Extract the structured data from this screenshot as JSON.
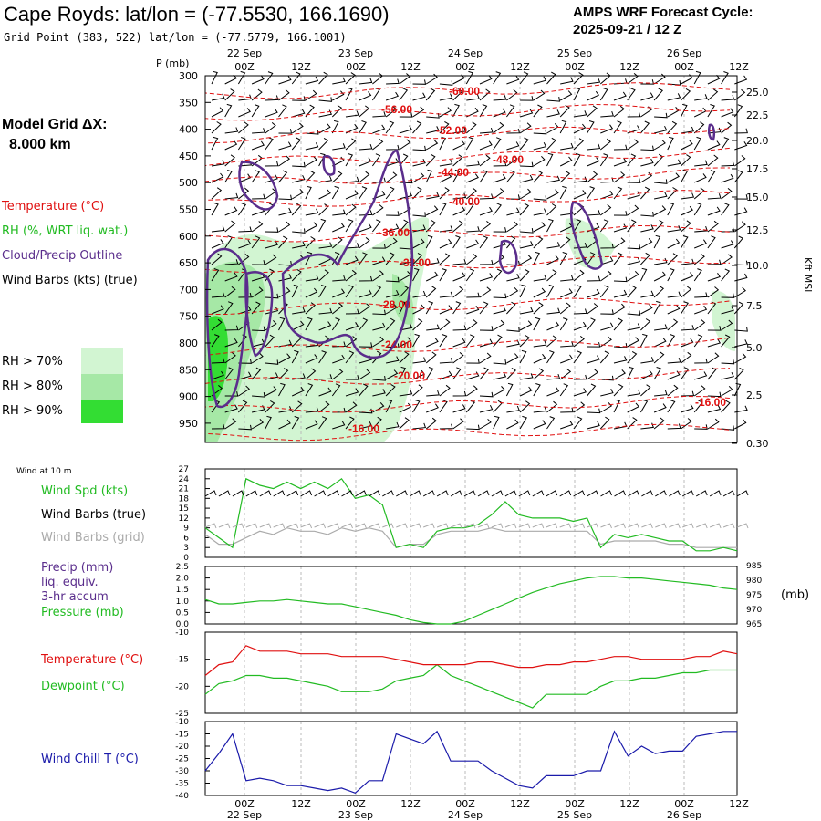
{
  "header": {
    "title": "Cape Royds:  lat/lon = (-77.5530, 166.1690)",
    "grid_point": "Grid Point (383, 522) lat/lon = (-77.5779, 166.1001)",
    "cycle_line1": "AMPS WRF Forecast Cycle:",
    "cycle_line2": "2025-09-21 / 12  Z"
  },
  "left_panel": {
    "model_grid_line1": "Model Grid ΔX:",
    "model_grid_line2": "8.000 km",
    "legend_temperature": "Temperature (°C)",
    "legend_rh": "RH (%, WRT liq. wat.)",
    "legend_cloud": "Cloud/Precip Outline",
    "legend_wind": "Wind Barbs (kts) (true)",
    "rh70": "RH > 70%",
    "rh80": "RH > 80%",
    "rh90": "RH > 90%",
    "wind_at_10m": "Wind at 10 m",
    "wind_spd": "Wind Spd (kts)",
    "wind_barbs_true": "Wind Barbs (true)",
    "wind_barbs_grid": "Wind Barbs (grid)",
    "precip1": "Precip (mm)",
    "precip2": "liq. equiv.",
    "precip3": "3-hr accum",
    "pressure": "Pressure (mb)",
    "temperature": "Temperature (°C)",
    "dewpoint": "Dewpoint (°C)",
    "windchill": "Wind Chill T (°C)"
  },
  "colors": {
    "temperature": "#e01010",
    "rh_green": "#22bb22",
    "cloud": "#5a2d8c",
    "windchill": "#1a1aaa",
    "grid_barb": "#aaaaaa",
    "rh70": "#d2f5d2",
    "rh80": "#a6e8a6",
    "rh90": "#33dd33"
  },
  "time_axis": {
    "hour_labels": [
      "00Z",
      "12Z",
      "00Z",
      "12Z",
      "00Z",
      "12Z",
      "00Z",
      "12Z",
      "00Z",
      "12Z"
    ],
    "date_labels": [
      "22 Sep",
      "23 Sep",
      "24 Sep",
      "25 Sep",
      "26 Sep"
    ],
    "top_hour_labels": [
      "00Z",
      "12Z",
      "00Z",
      "12Z",
      "00Z",
      "12Z",
      "00Z",
      "12Z",
      "00Z",
      "12Z"
    ],
    "p_mb_label": "P (mb)",
    "kft_label": "Kft MSL",
    "mb_label": "(mb)"
  },
  "chart_data": [
    {
      "type": "line",
      "name": "cross-section",
      "pressure_ticks": [
        "300",
        "350",
        "400",
        "450",
        "500",
        "550",
        "600",
        "650",
        "700",
        "750",
        "800",
        "850",
        "900",
        "950"
      ],
      "kft_ticks": [
        "25.0",
        "22.5",
        "20.0",
        "17.5",
        "15.0",
        "12.5",
        "10.0",
        "7.5",
        "5.0",
        "2.5",
        "0.30"
      ],
      "isotherm_labels": [
        "-60.00",
        "-56.00",
        "-52.00",
        "-48.00",
        "-44.00",
        "-40.00",
        "-36.00",
        "-32.00",
        "-28.00",
        "-24.00",
        "-20.00",
        "-16.00",
        "-16.00"
      ]
    },
    {
      "type": "line",
      "name": "wind-speed",
      "yticks": [
        "27",
        "24",
        "21",
        "18",
        "15",
        "12",
        "9",
        "6",
        "3",
        "0"
      ],
      "ylim": [
        0,
        27
      ],
      "x_hours": [
        0,
        3,
        6,
        9,
        12,
        15,
        18,
        21,
        24,
        27,
        30,
        33,
        36,
        39,
        42,
        45,
        48,
        51,
        54,
        57,
        60,
        63,
        66,
        69,
        72,
        75,
        78,
        81,
        84,
        87,
        90,
        93,
        96,
        99,
        102,
        105,
        108,
        111,
        114,
        117
      ],
      "wind_spd": [
        9,
        6,
        3,
        24,
        22,
        21,
        23,
        21,
        23,
        21,
        24,
        18,
        19,
        16,
        3,
        4,
        3,
        8,
        9,
        9,
        10,
        13,
        17,
        13,
        12,
        12,
        12,
        11,
        12,
        3,
        7,
        6,
        7,
        6,
        5,
        5,
        2,
        2,
        3,
        2
      ],
      "grid_barb": [
        7,
        4,
        4,
        6,
        8,
        7,
        9,
        8,
        8,
        7,
        9,
        8,
        9,
        8,
        3,
        4,
        4,
        7,
        8,
        8,
        8,
        9,
        8,
        8,
        8,
        8,
        8,
        8,
        8,
        4,
        5,
        5,
        5,
        5,
        4,
        4,
        3,
        3,
        3,
        3
      ]
    },
    {
      "type": "line",
      "name": "precip-pressure",
      "left_ticks": [
        "2.5",
        "2.0",
        "1.5",
        "1.0",
        "0.5",
        "0.0"
      ],
      "right_ticks": [
        "985",
        "980",
        "975",
        "970",
        "965"
      ],
      "ylim_pressure": [
        965,
        985
      ],
      "pressure": [
        973.5,
        972,
        972,
        972.5,
        973,
        973,
        973.5,
        973,
        972.5,
        972,
        972,
        971,
        970,
        969,
        968,
        966.5,
        965.5,
        965,
        965,
        966,
        968,
        970,
        972,
        974,
        976,
        977.5,
        979,
        980,
        981,
        981.5,
        981.5,
        981,
        981,
        980.5,
        980,
        979.5,
        979,
        978.5,
        977.5,
        977
      ]
    },
    {
      "type": "line",
      "name": "temperature-dewpoint",
      "left_ticks": [
        "-10",
        "-15",
        "-20",
        "-25"
      ],
      "ylim": [
        -25,
        -10
      ],
      "temperature": [
        -18,
        -16,
        -15.5,
        -12.5,
        -13.5,
        -13.5,
        -13.5,
        -14,
        -14,
        -14,
        -14.5,
        -14.5,
        -14.5,
        -14.5,
        -15,
        -15.5,
        -16,
        -16,
        -16,
        -16,
        -15.5,
        -15.5,
        -16,
        -16.5,
        -16.5,
        -16,
        -16,
        -15.5,
        -15.5,
        -15,
        -14.5,
        -14.5,
        -15,
        -15,
        -15,
        -15,
        -14.5,
        -14.5,
        -13.5,
        -14
      ],
      "dewpoint": [
        -21.5,
        -19.5,
        -19,
        -18,
        -18,
        -18.5,
        -18.5,
        -19,
        -19.5,
        -20,
        -21,
        -21,
        -21,
        -20.5,
        -19,
        -18.5,
        -18,
        -16,
        -18,
        -19,
        -20,
        -21,
        -22,
        -23,
        -24,
        -21.5,
        -21.5,
        -21.5,
        -21.5,
        -20,
        -19,
        -19,
        -18.5,
        -18.5,
        -18,
        -17.5,
        -17.5,
        -17,
        -17,
        -17
      ]
    },
    {
      "type": "line",
      "name": "wind-chill",
      "left_ticks": [
        "-10",
        "-15",
        "-20",
        "-25",
        "-30",
        "-35",
        "-40"
      ],
      "ylim": [
        -40,
        -10
      ],
      "windchill": [
        -30,
        -23,
        -15,
        -34,
        -33,
        -34,
        -36,
        -36,
        -37,
        -38,
        -37,
        -39,
        -34,
        -34,
        -15,
        -17,
        -19,
        -14,
        -26,
        -26,
        -26,
        -30,
        -33,
        -36,
        -37,
        -32,
        -32,
        -32,
        -30,
        -30,
        -14,
        -24,
        -20,
        -23,
        -22,
        -22,
        -16,
        -15,
        -14,
        -14
      ]
    }
  ]
}
